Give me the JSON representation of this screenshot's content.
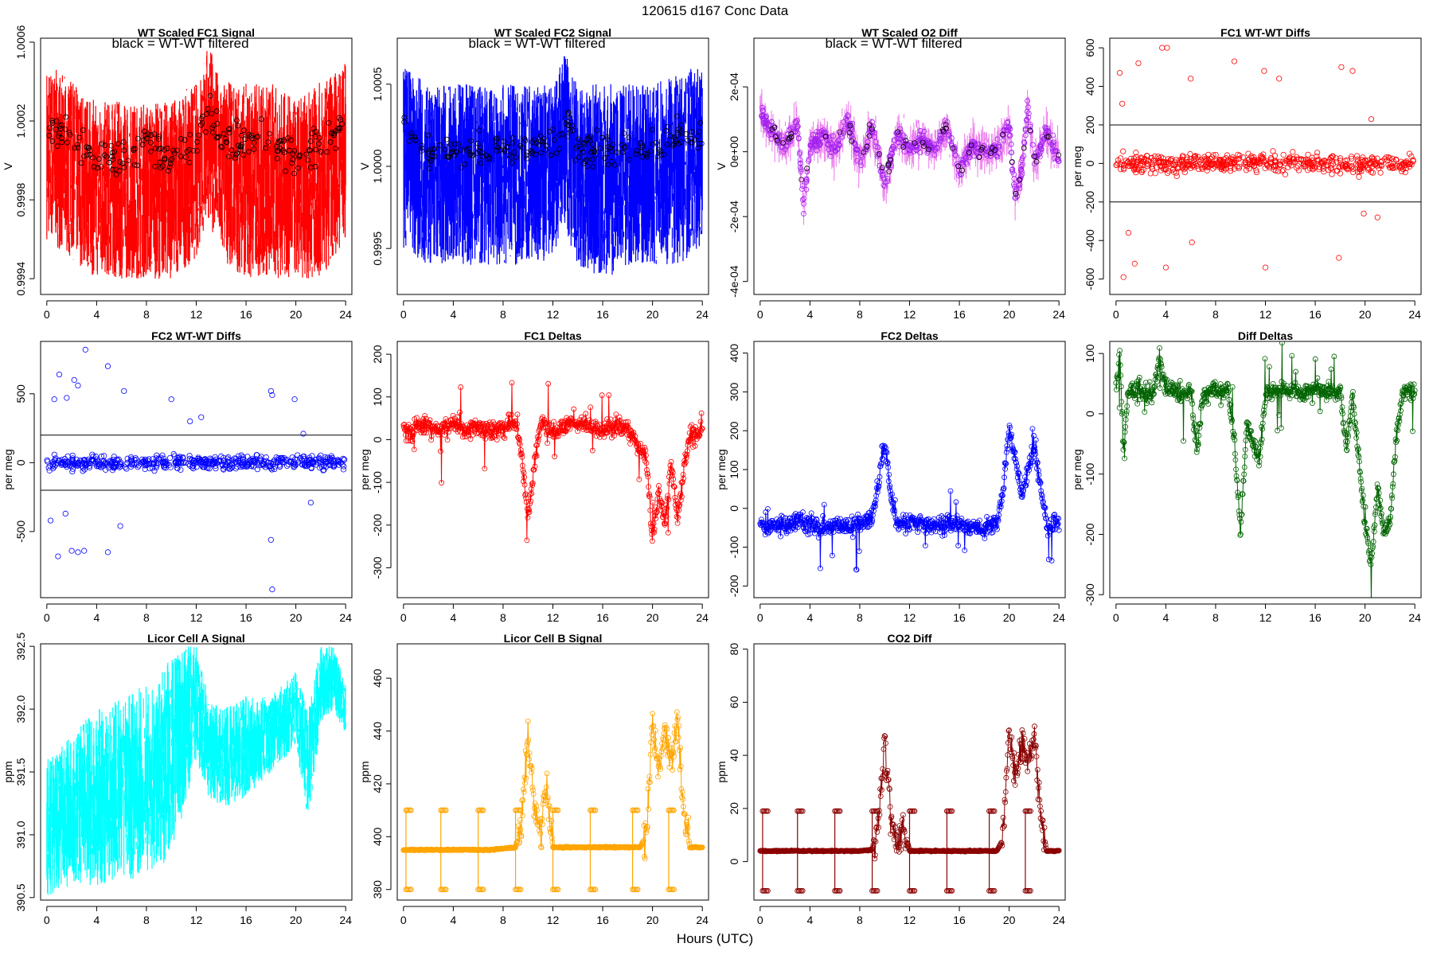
{
  "figure": {
    "title": "120615    d167    Conc Data",
    "xlabel": "Hours (UTC)"
  },
  "chart_data": [
    {
      "id": "fc1sig",
      "type": "line",
      "title": "WT Scaled FC1 Signal",
      "note": "black = WT-WT filtered",
      "ylabel": "V",
      "color": "#ff0000",
      "style": "dense",
      "markers": "black",
      "xlim": [
        -0.5,
        24.5
      ],
      "ylim": [
        0.99932,
        1.00062
      ],
      "yticks": [
        0.9994,
        0.9998,
        1.0002,
        1.0006
      ],
      "ytick_labels": [
        "0.9994",
        "0.9998",
        "1.0002",
        "1.0006"
      ],
      "xticks": [
        0,
        4,
        8,
        12,
        16,
        20,
        24
      ],
      "xtick_labels": [
        "0",
        "4",
        "8",
        "12",
        "16",
        "20",
        "24"
      ],
      "x": [
        0,
        2,
        4,
        6,
        8,
        10,
        12,
        13,
        14,
        16,
        18,
        20,
        22,
        24
      ],
      "values": [
        1.0002,
        1.0001,
        1.0,
        1.0,
        1.0001,
        1.0,
        1.0001,
        1.0003,
        1.0001,
        1.0001,
        1.0001,
        1.0,
        1.0001,
        1.0002
      ],
      "band_lo": [
        0.9996,
        0.9995,
        0.9994,
        0.9994,
        0.9994,
        0.9994,
        0.9995,
        0.9997,
        0.9995,
        0.9994,
        0.9994,
        0.9994,
        0.9994,
        0.9996
      ],
      "band_hi": [
        1.0005,
        1.0004,
        1.0003,
        1.0003,
        1.0003,
        1.0003,
        1.0004,
        1.0006,
        1.0004,
        1.0004,
        1.0004,
        1.0003,
        1.0004,
        1.0005
      ]
    },
    {
      "id": "fc2sig",
      "type": "line",
      "title": "WT Scaled FC2 Signal",
      "note": "black = WT-WT filtered",
      "ylabel": "V",
      "color": "#0000ff",
      "style": "dense",
      "markers": "black",
      "xlim": [
        -0.5,
        24.5
      ],
      "ylim": [
        0.99922,
        1.00078
      ],
      "yticks": [
        0.9995,
        1.0,
        1.0005
      ],
      "ytick_labels": [
        "0.9995",
        "1.0000",
        "1.0005"
      ],
      "xticks": [
        0,
        4,
        8,
        12,
        16,
        20,
        24
      ],
      "xtick_labels": [
        "0",
        "4",
        "8",
        "12",
        "16",
        "20",
        "24"
      ],
      "x": [
        0,
        2,
        4,
        6,
        8,
        10,
        12,
        13,
        14,
        16,
        18,
        20,
        22,
        24
      ],
      "values": [
        1.0002,
        1.0001,
        1.0001,
        1.0001,
        1.0001,
        1.0001,
        1.0001,
        1.0003,
        1.0001,
        1.0001,
        1.0001,
        1.0001,
        1.0002,
        1.0002
      ],
      "band_lo": [
        0.9995,
        0.9994,
        0.9994,
        0.9994,
        0.9994,
        0.9994,
        0.9994,
        0.9996,
        0.9994,
        0.9993,
        0.9994,
        0.9994,
        0.9994,
        0.9995
      ],
      "band_hi": [
        1.0006,
        1.0005,
        1.0005,
        1.0005,
        1.0005,
        1.0005,
        1.0005,
        1.0007,
        1.0005,
        1.0005,
        1.0005,
        1.0005,
        1.0006,
        1.0006
      ]
    },
    {
      "id": "o2diff",
      "type": "scatter",
      "title": "WT Scaled O2 Diff",
      "note": "black = WT-WT filtered",
      "ylabel": "V",
      "color": "#a020f0",
      "band_color": "#ee82ee",
      "style": "pointsband",
      "markers": "black",
      "xlim": [
        -0.5,
        24.5
      ],
      "ylim": [
        -0.00044,
        0.00035
      ],
      "yticks": [
        -0.0004,
        -0.0002,
        0,
        0.0002
      ],
      "ytick_labels": [
        "-4e-04",
        "-2e-04",
        "0e+00",
        "2e-04"
      ],
      "xticks": [
        0,
        4,
        8,
        12,
        16,
        20,
        24
      ],
      "xtick_labels": [
        "0",
        "4",
        "8",
        "12",
        "16",
        "20",
        "24"
      ],
      "x": [
        0,
        1,
        2,
        3,
        3.5,
        4,
        5,
        6,
        7,
        8,
        9,
        10,
        11,
        12,
        13,
        14,
        15,
        16,
        17,
        18,
        19,
        20,
        20.5,
        21,
        21.5,
        22,
        23,
        24
      ],
      "values": [
        0.00012,
        6e-05,
        2e-05,
        9e-05,
        -0.00018,
        2e-05,
        5e-05,
        0.0,
        0.0001,
        -3e-05,
        8e-05,
        -0.0001,
        6e-05,
        1e-05,
        4e-05,
        0.0,
        8e-05,
        -6e-05,
        2e-05,
        0.0,
        1e-05,
        8e-05,
        -0.00014,
        -6e-05,
        0.00014,
        -4e-05,
        6e-05,
        -2e-05
      ]
    },
    {
      "id": "fc1wt",
      "type": "scatter",
      "title": "FC1 WT-WT Diffs",
      "ylabel": "per meg",
      "color": "#ff0000",
      "style": "wtwt",
      "xlim": [
        -0.5,
        24.5
      ],
      "ylim": [
        -680,
        650
      ],
      "yticks": [
        -600,
        -400,
        -200,
        0,
        200,
        400,
        600
      ],
      "ytick_labels": [
        "-600",
        "-400",
        "-200",
        "0",
        "200",
        "400",
        "600"
      ],
      "xticks": [
        0,
        4,
        8,
        12,
        16,
        20,
        24
      ],
      "xtick_labels": [
        "0",
        "4",
        "8",
        "12",
        "16",
        "20",
        "24"
      ],
      "hlines": [
        200,
        -200
      ],
      "spread": 75,
      "outliers_x": [
        0.3,
        0.5,
        1.8,
        3.7,
        4.1,
        6.0,
        9.5,
        11.9,
        13.1,
        18.1,
        19.0,
        20.5,
        0.6,
        1.0,
        1.5,
        4.0,
        6.1,
        12.0,
        17.9,
        19.9,
        21.0
      ],
      "outliers_y": [
        470,
        310,
        520,
        600,
        600,
        440,
        530,
        480,
        440,
        500,
        480,
        230,
        -590,
        -360,
        -520,
        -540,
        -410,
        -540,
        -490,
        -260,
        -280
      ]
    },
    {
      "id": "fc2wt",
      "type": "scatter",
      "title": "FC2 WT-WT Diffs",
      "ylabel": "per meg",
      "color": "#0000ff",
      "style": "wtwt",
      "xlim": [
        -0.5,
        24.5
      ],
      "ylim": [
        -980,
        880
      ],
      "yticks": [
        -500,
        0,
        500
      ],
      "ytick_labels": [
        "-500",
        "0",
        "500"
      ],
      "xticks": [
        0,
        4,
        8,
        12,
        16,
        20,
        24
      ],
      "xtick_labels": [
        "0",
        "4",
        "8",
        "12",
        "16",
        "20",
        "24"
      ],
      "hlines": [
        200,
        -200
      ],
      "spread": 80,
      "outliers_x": [
        0.6,
        1.0,
        1.6,
        2.2,
        2.5,
        3.1,
        4.9,
        6.2,
        10.0,
        11.5,
        12.4,
        18.0,
        18.1,
        19.9,
        20.6,
        0.3,
        0.9,
        1.5,
        2.0,
        2.5,
        3.0,
        4.9,
        5.9,
        18.0,
        18.1,
        21.2
      ],
      "outliers_y": [
        460,
        640,
        470,
        600,
        560,
        820,
        700,
        520,
        460,
        300,
        330,
        520,
        490,
        460,
        210,
        -420,
        -680,
        -370,
        -640,
        -650,
        -640,
        -650,
        -460,
        -560,
        -920,
        -290
      ]
    },
    {
      "id": "fc1d",
      "type": "line",
      "title": "FC1 Deltas",
      "ylabel": "per meg",
      "color": "#ff0000",
      "style": "linepoints",
      "xlim": [
        -0.5,
        24.5
      ],
      "ylim": [
        -370,
        230
      ],
      "yticks": [
        -300,
        -200,
        -100,
        0,
        100,
        200
      ],
      "ytick_labels": [
        "-300",
        "-200",
        "-100",
        "0",
        "100",
        "200"
      ],
      "xticks": [
        0,
        4,
        8,
        12,
        16,
        20,
        24
      ],
      "xtick_labels": [
        "0",
        "4",
        "8",
        "12",
        "16",
        "20",
        "24"
      ],
      "x": [
        0,
        0.5,
        1,
        2,
        3,
        4,
        5,
        6,
        7,
        8,
        9,
        9.5,
        10,
        10.5,
        11,
        12,
        13,
        14,
        15,
        16,
        17,
        18,
        19,
        19.5,
        20,
        20.5,
        21,
        21.5,
        22,
        22.5,
        23,
        24
      ],
      "values": [
        30,
        10,
        40,
        30,
        20,
        40,
        20,
        30,
        20,
        30,
        40,
        -40,
        -180,
        -60,
        40,
        20,
        30,
        40,
        30,
        20,
        30,
        30,
        -20,
        -40,
        -240,
        -120,
        -200,
        -60,
        -180,
        -80,
        10,
        20
      ]
    },
    {
      "id": "fc2d",
      "type": "line",
      "title": "FC2 Deltas",
      "ylabel": "per meg",
      "color": "#0000ff",
      "style": "linepoints",
      "xlim": [
        -0.5,
        24.5
      ],
      "ylim": [
        -230,
        430
      ],
      "yticks": [
        -200,
        -100,
        0,
        100,
        200,
        300,
        400
      ],
      "ytick_labels": [
        "-200",
        "-100",
        "0",
        "100",
        "200",
        "300",
        "400"
      ],
      "xticks": [
        0,
        4,
        8,
        12,
        16,
        20,
        24
      ],
      "xtick_labels": [
        "0",
        "4",
        "8",
        "12",
        "16",
        "20",
        "24"
      ],
      "x": [
        0,
        0.5,
        1,
        2,
        3,
        4,
        5,
        6,
        7,
        8,
        9,
        9.5,
        10,
        10.5,
        11,
        12,
        13,
        14,
        15,
        16,
        17,
        18,
        19,
        19.5,
        20,
        20.5,
        21,
        21.5,
        22,
        22.5,
        23,
        24
      ],
      "values": [
        -30,
        -60,
        -40,
        -50,
        -30,
        -40,
        -50,
        -40,
        -50,
        -40,
        -30,
        60,
        170,
        40,
        -40,
        -30,
        -40,
        -50,
        -40,
        -40,
        -50,
        -50,
        -40,
        40,
        210,
        120,
        30,
        100,
        160,
        60,
        -40,
        -40
      ]
    },
    {
      "id": "diffd",
      "type": "line",
      "title": "Diff Deltas",
      "ylabel": "per meg",
      "color": "#006400",
      "style": "linepoints",
      "xlim": [
        -0.5,
        24.5
      ],
      "ylim": [
        -305,
        120
      ],
      "yticks": [
        -300,
        -200,
        -100,
        0,
        100
      ],
      "ytick_labels": [
        "-300",
        "-200",
        "-100",
        "0",
        "100"
      ],
      "xticks": [
        0,
        4,
        8,
        12,
        16,
        20,
        24
      ],
      "xtick_labels": [
        "0",
        "4",
        "8",
        "12",
        "16",
        "20",
        "24"
      ],
      "x": [
        0,
        0.3,
        0.6,
        1,
        2,
        3,
        3.5,
        4,
        5,
        6,
        6.5,
        7,
        8,
        9,
        9.5,
        10,
        10.5,
        11,
        11.5,
        12,
        13,
        14,
        15,
        16,
        17,
        18,
        18.5,
        19,
        19.5,
        20,
        20.5,
        21,
        21.5,
        22,
        22.5,
        23,
        24
      ],
      "values": [
        40,
        100,
        -60,
        40,
        40,
        30,
        100,
        40,
        35,
        40,
        -60,
        35,
        40,
        40,
        -40,
        -200,
        -20,
        -50,
        -80,
        35,
        40,
        40,
        35,
        40,
        35,
        40,
        -60,
        30,
        -80,
        -180,
        -250,
        -120,
        -200,
        -180,
        -40,
        35,
        35
      ]
    },
    {
      "id": "cella",
      "type": "line",
      "title": "Licor Cell A Signal",
      "ylabel": "ppm",
      "color": "#00ffff",
      "style": "dense",
      "xlim": [
        -0.5,
        24.5
      ],
      "ylim": [
        390.48,
        392.52
      ],
      "yticks": [
        390.5,
        391.0,
        391.5,
        392.0,
        392.5
      ],
      "ytick_labels": [
        "390.5",
        "391.0",
        "391.5",
        "392.0",
        "392.5"
      ],
      "xticks": [
        0,
        4,
        8,
        12,
        16,
        20,
        24
      ],
      "xtick_labels": [
        "0",
        "4",
        "8",
        "12",
        "16",
        "20",
        "24"
      ],
      "x": [
        0,
        2,
        4,
        6,
        8,
        10,
        11,
        12,
        13,
        14,
        16,
        18,
        20,
        21,
        22,
        23,
        24
      ],
      "values": [
        391.0,
        391.2,
        391.3,
        391.4,
        391.5,
        391.6,
        391.8,
        392.3,
        391.7,
        391.6,
        391.7,
        391.8,
        392.0,
        391.4,
        392.2,
        392.3,
        392.0
      ],
      "band_lo": [
        390.5,
        390.6,
        390.6,
        390.6,
        390.7,
        390.8,
        391.2,
        391.6,
        391.3,
        391.2,
        391.3,
        391.5,
        391.7,
        391.1,
        391.9,
        392.0,
        391.8
      ],
      "band_hi": [
        391.6,
        391.8,
        392.0,
        392.1,
        392.2,
        392.4,
        392.5,
        392.5,
        392.1,
        392.0,
        392.1,
        392.1,
        392.3,
        392.0,
        392.5,
        392.5,
        392.2
      ]
    },
    {
      "id": "cellb",
      "type": "line",
      "title": "Licor Cell B Signal",
      "ylabel": "ppm",
      "color": "#ffa500",
      "style": "cellstyle",
      "xlim": [
        -0.5,
        24.5
      ],
      "ylim": [
        376,
        473
      ],
      "yticks": [
        380,
        400,
        420,
        440,
        460
      ],
      "ytick_labels": [
        "380",
        "400",
        "420",
        "440",
        "460"
      ],
      "xticks": [
        0,
        4,
        8,
        12,
        16,
        20,
        24
      ],
      "xtick_labels": [
        "0",
        "4",
        "8",
        "12",
        "16",
        "20",
        "24"
      ],
      "baseline": 395.5,
      "base_x": [
        0,
        1,
        2,
        3,
        4,
        5,
        6,
        7,
        8,
        9,
        9.5,
        10,
        10.5,
        11,
        11.5,
        12,
        13,
        14,
        15,
        16,
        17,
        18,
        19,
        19.5,
        20,
        20.5,
        21,
        21.5,
        22,
        22.5,
        23,
        24
      ],
      "base_v": [
        395,
        395,
        395,
        395,
        395,
        395,
        395,
        395,
        395.5,
        396,
        405,
        440,
        410,
        400,
        420,
        396,
        396,
        396,
        396,
        396,
        396,
        396,
        396,
        400,
        445,
        425,
        440,
        430,
        445,
        410,
        396,
        396
      ],
      "spike_hi": [
        410,
        410,
        410,
        410,
        410,
        410,
        410,
        410
      ],
      "spike_lo": [
        380,
        380,
        380,
        380,
        380,
        380,
        380,
        380
      ],
      "spike_x": [
        0.2,
        3.0,
        6.0,
        9.0,
        12.0,
        15.0,
        18.4,
        21.3
      ]
    },
    {
      "id": "co2d",
      "type": "line",
      "title": "CO2 Diff",
      "ylabel": "ppm",
      "color": "#8b0000",
      "style": "cellstyle",
      "xlim": [
        -0.5,
        24.5
      ],
      "ylim": [
        -14.5,
        82
      ],
      "yticks": [
        0,
        20,
        40,
        60,
        80
      ],
      "ytick_labels": [
        "0",
        "20",
        "40",
        "60",
        "80"
      ],
      "xticks": [
        0,
        4,
        8,
        12,
        16,
        20,
        24
      ],
      "xtick_labels": [
        "0",
        "4",
        "8",
        "12",
        "16",
        "20",
        "24"
      ],
      "baseline": 4,
      "base_x": [
        0,
        1,
        2,
        3,
        4,
        5,
        6,
        7,
        8,
        9,
        9.5,
        10,
        10.5,
        11,
        11.5,
        12,
        13,
        14,
        15,
        16,
        17,
        18,
        19,
        19.5,
        20,
        20.5,
        21,
        21.5,
        22,
        22.5,
        23,
        24
      ],
      "base_v": [
        4,
        4,
        4,
        4,
        4,
        4,
        4,
        4,
        4,
        4.5,
        15,
        45,
        18,
        6,
        14,
        4,
        4,
        4,
        4,
        4,
        4,
        4,
        4,
        8,
        50,
        30,
        45,
        35,
        50,
        18,
        4,
        4
      ],
      "spike_hi": [
        19,
        19,
        19,
        19,
        19,
        19,
        19,
        19
      ],
      "spike_lo": [
        -11,
        -11,
        -11,
        -11,
        -11,
        -11,
        -11,
        -11
      ],
      "spike_x": [
        0.2,
        3.0,
        6.0,
        9.0,
        12.0,
        15.0,
        18.4,
        21.3
      ]
    }
  ]
}
